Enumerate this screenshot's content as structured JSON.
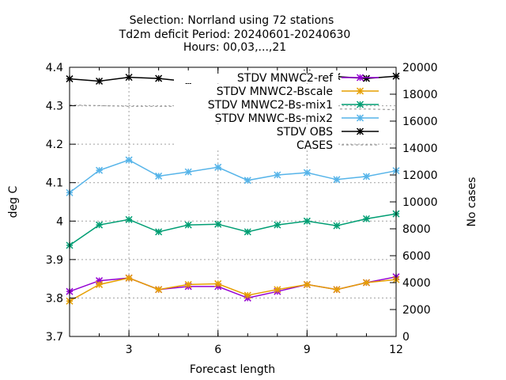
{
  "chart_data": {
    "type": "line",
    "title_lines": [
      "Selection: Norrland using     72 stations",
      "Td2m deficit   Period: 20240601-20240630",
      "Hours: 00,03,...,21"
    ],
    "xlabel": "Forecast length",
    "ylabel": "deg C",
    "y2label": "No cases",
    "xlim": [
      1,
      12
    ],
    "ylim": [
      3.7,
      4.4
    ],
    "y2lim": [
      0,
      20000
    ],
    "xticks": [
      3,
      6,
      9,
      12
    ],
    "yticks": [
      3.7,
      3.8,
      3.9,
      4.0,
      4.1,
      4.2,
      4.3,
      4.4
    ],
    "ytick_labels": [
      "3.7",
      "3.8",
      "3.9",
      "4",
      "4.1",
      "4.2",
      "4.3",
      "4.4"
    ],
    "y2ticks": [
      0,
      2000,
      4000,
      6000,
      8000,
      10000,
      12000,
      14000,
      16000,
      18000,
      20000
    ],
    "grid": true,
    "legend_position": "top-right",
    "x": [
      1,
      2,
      3,
      4,
      5,
      6,
      7,
      8,
      9,
      10,
      11,
      12
    ],
    "series": [
      {
        "name": "STDV MNWC2-ref",
        "color": "#9400d3",
        "marker": "x",
        "axis": "y1",
        "values": [
          3.817,
          3.845,
          3.852,
          3.822,
          3.83,
          3.83,
          3.8,
          3.817,
          3.835,
          3.822,
          3.84,
          3.855
        ]
      },
      {
        "name": "STDV MNWC2-Bscale",
        "color": "#e69f00",
        "marker": "x",
        "axis": "y1",
        "values": [
          3.792,
          3.835,
          3.852,
          3.822,
          3.835,
          3.837,
          3.807,
          3.822,
          3.835,
          3.822,
          3.84,
          3.848
        ]
      },
      {
        "name": "STDV MNWC2-Bs-mix1",
        "color": "#009e73",
        "marker": "x",
        "axis": "y1",
        "values": [
          3.937,
          3.99,
          4.004,
          3.972,
          3.99,
          3.992,
          3.972,
          3.99,
          4.0,
          3.988,
          4.006,
          4.019
        ]
      },
      {
        "name": "STDV MNWC-Bs-mix2",
        "color": "#56b4e9",
        "marker": "x",
        "axis": "y1",
        "values": [
          4.074,
          4.132,
          4.159,
          4.117,
          4.128,
          4.14,
          4.106,
          4.12,
          4.126,
          4.108,
          4.116,
          4.131
        ]
      },
      {
        "name": "STDV OBS",
        "color": "#000000",
        "marker": "x",
        "axis": "y1",
        "values": [
          4.37,
          4.364,
          4.374,
          4.371,
          4.363,
          4.376,
          4.372,
          4.371,
          4.385,
          4.376,
          4.371,
          4.377
        ]
      },
      {
        "name": "CASES",
        "color": "#999999",
        "marker": "none",
        "dashed": true,
        "axis": "y2",
        "values": [
          17200,
          17150,
          17100,
          17100,
          17100,
          17050,
          17000,
          17000,
          16950,
          16900,
          16900,
          16850
        ]
      }
    ]
  }
}
